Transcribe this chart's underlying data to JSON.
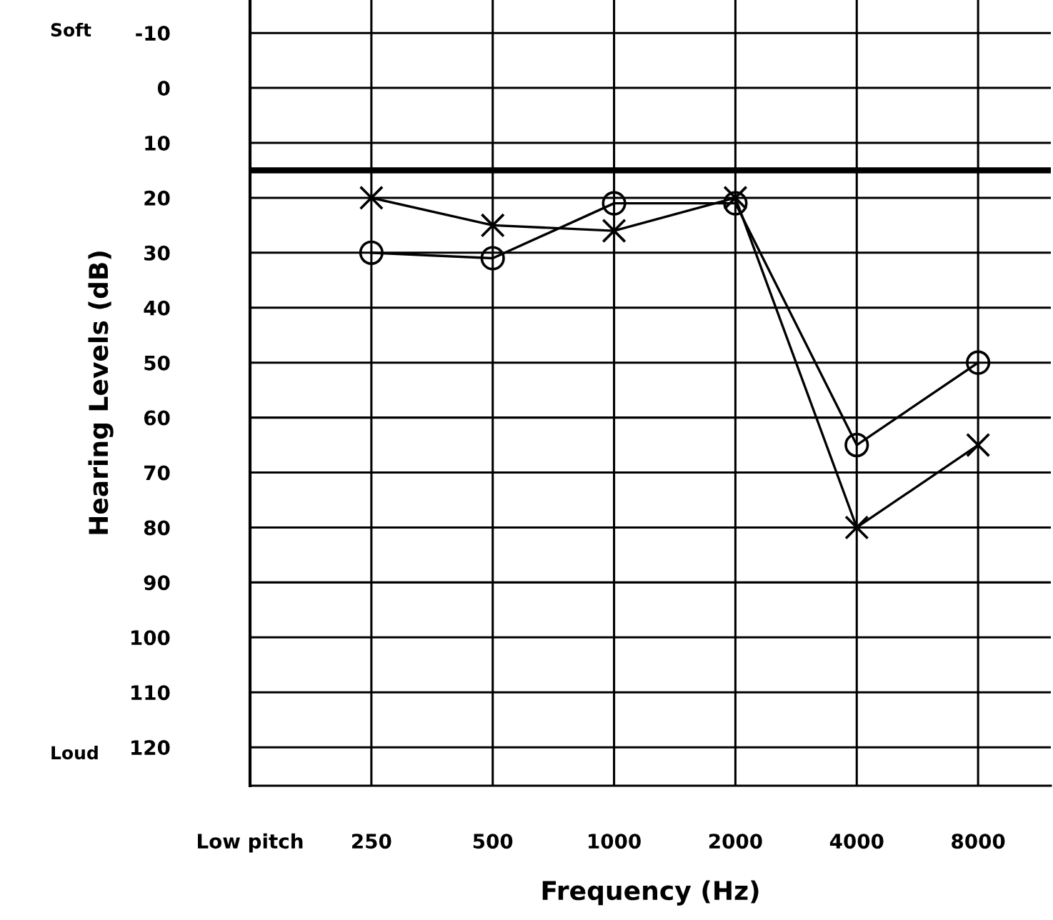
{
  "chart_data": {
    "type": "line",
    "xlabel": "Frequency (Hz)",
    "ylabel": "Hearing Levels (dB)",
    "categories": [
      "Low pitch",
      "250",
      "500",
      "1000",
      "2000",
      "4000",
      "8000"
    ],
    "series": [
      {
        "color": "#000000",
        "marker": "cross",
        "values": [
          null,
          20,
          25,
          26,
          20,
          80,
          65
        ]
      },
      {
        "color": "#000000",
        "marker": "circle",
        "values": [
          null,
          30,
          31,
          21,
          21,
          65,
          50
        ]
      }
    ],
    "ylim": [
      127,
      -16
    ],
    "yticks": [
      -10,
      0,
      10,
      20,
      30,
      40,
      50,
      60,
      70,
      80,
      90,
      100,
      110,
      120
    ],
    "ref_lines": [
      {
        "axis": "y",
        "value": 15,
        "color": "#000000"
      }
    ],
    "annotations": [
      "Soft",
      "Loud"
    ],
    "grid": true
  }
}
